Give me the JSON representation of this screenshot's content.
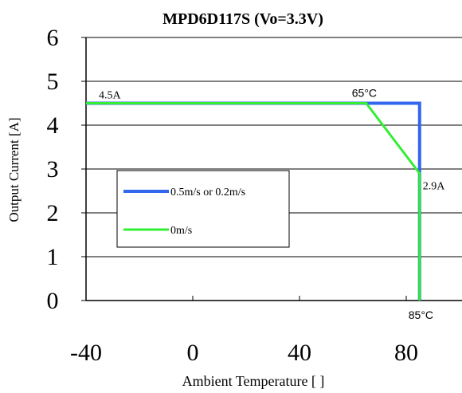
{
  "chart_data": {
    "type": "line",
    "title": "MPD6D117S  (Vo=3.3V)",
    "xlabel": "Ambient Temperature [    ]",
    "ylabel": "Output Current [A]",
    "xlim": [
      -40,
      80
    ],
    "ylim": [
      0,
      6
    ],
    "x_ticks": [
      "-40",
      "0",
      "40",
      "80"
    ],
    "y_ticks": [
      "0",
      "1",
      "2",
      "3",
      "4",
      "5",
      "6"
    ],
    "grid": "horizontal",
    "legend_position": "center-left",
    "series": [
      {
        "name": "0.5m/s or 0.2m/s",
        "color": "#3366ee",
        "points": [
          [
            -40,
            4.5
          ],
          [
            65,
            4.5
          ],
          [
            85,
            4.5
          ],
          [
            85,
            0
          ]
        ]
      },
      {
        "name": "0m/s",
        "color": "#33ee33",
        "points": [
          [
            -40,
            4.5
          ],
          [
            65,
            4.5
          ],
          [
            85,
            2.9
          ],
          [
            85,
            0
          ]
        ]
      }
    ],
    "annotations": [
      {
        "text": "4.5A",
        "x": -40,
        "y": 4.5
      },
      {
        "text": "65°C",
        "x": 65,
        "y": 4.5
      },
      {
        "text": "2.9A",
        "x": 85,
        "y": 2.9
      },
      {
        "text": "85°C",
        "x": 85,
        "y": 0
      }
    ]
  }
}
